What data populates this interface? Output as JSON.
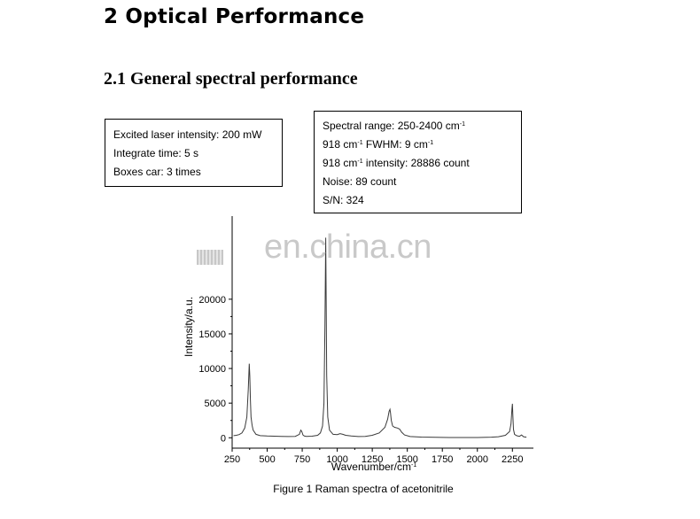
{
  "headings": {
    "section": "2  Optical Performance",
    "subsection": "2.1  General spectral performance"
  },
  "box_left": {
    "line1": "Excited laser intensity: 200 mW",
    "line2": "Integrate time: 5 s",
    "line3": "Boxes car: 3 times"
  },
  "box_right": {
    "line1_a": "Spectral range: 250-2400 cm",
    "line1_sup": "-1",
    "line2_a": "918 cm",
    "line2_sup": "-1",
    "line2_b": " FWHM: 9 cm",
    "line2_sup2": "-1",
    "line3_a": "918 cm",
    "line3_sup": "-1",
    "line3_b": " intensity: 28886 count",
    "line4": "Noise: 89 count",
    "line5": "S/N: 324"
  },
  "watermark": "en.china.cn",
  "caption": "Figure 1 Raman spectra of acetonitrile",
  "chart_data": {
    "type": "line",
    "title": "",
    "xlabel": "Wavenumber/cm",
    "xlabel_sup": "-1",
    "ylabel": "Intensity/a.u.",
    "xlim": [
      250,
      2400
    ],
    "ylim": [
      -1500,
      32000
    ],
    "xticks": [
      250,
      500,
      750,
      1000,
      1250,
      1500,
      1750,
      2000,
      2250
    ],
    "yticks": [
      0,
      5000,
      10000,
      15000,
      20000
    ],
    "series_color": "#3a3a3a",
    "series": [
      {
        "x": [
          260,
          280,
          300,
          320,
          340,
          355,
          365,
          372,
          376,
          380,
          385,
          392,
          400,
          420,
          450,
          500,
          550,
          600,
          650,
          700,
          730,
          740,
          747,
          755,
          765,
          780,
          820,
          860,
          880,
          895,
          905,
          912,
          915,
          918,
          921,
          925,
          932,
          945,
          970,
          1000,
          1020,
          1040,
          1060,
          1100,
          1150,
          1200,
          1250,
          1300,
          1340,
          1360,
          1370,
          1376,
          1380,
          1386,
          1395,
          1410,
          1430,
          1445,
          1460,
          1480,
          1520,
          1600,
          1700,
          1800,
          1900,
          2000,
          2100,
          2150,
          2200,
          2230,
          2240,
          2247,
          2250,
          2253,
          2258,
          2265,
          2280,
          2300,
          2315,
          2330,
          2350
        ],
        "y": [
          300,
          350,
          450,
          700,
          1400,
          3000,
          7000,
          10700,
          9000,
          5500,
          3000,
          1800,
          1100,
          500,
          300,
          250,
          220,
          200,
          180,
          200,
          500,
          1100,
          900,
          400,
          250,
          200,
          220,
          350,
          700,
          1700,
          5000,
          16000,
          23000,
          28886,
          20000,
          9000,
          3000,
          1100,
          500,
          450,
          600,
          500,
          350,
          250,
          180,
          200,
          350,
          700,
          1500,
          2700,
          3800,
          4100,
          3600,
          2500,
          1700,
          1500,
          1400,
          1250,
          800,
          400,
          180,
          100,
          60,
          40,
          30,
          40,
          80,
          150,
          350,
          900,
          2000,
          4200,
          4900,
          3200,
          1200,
          500,
          300,
          200,
          400,
          150,
          80
        ]
      }
    ]
  }
}
